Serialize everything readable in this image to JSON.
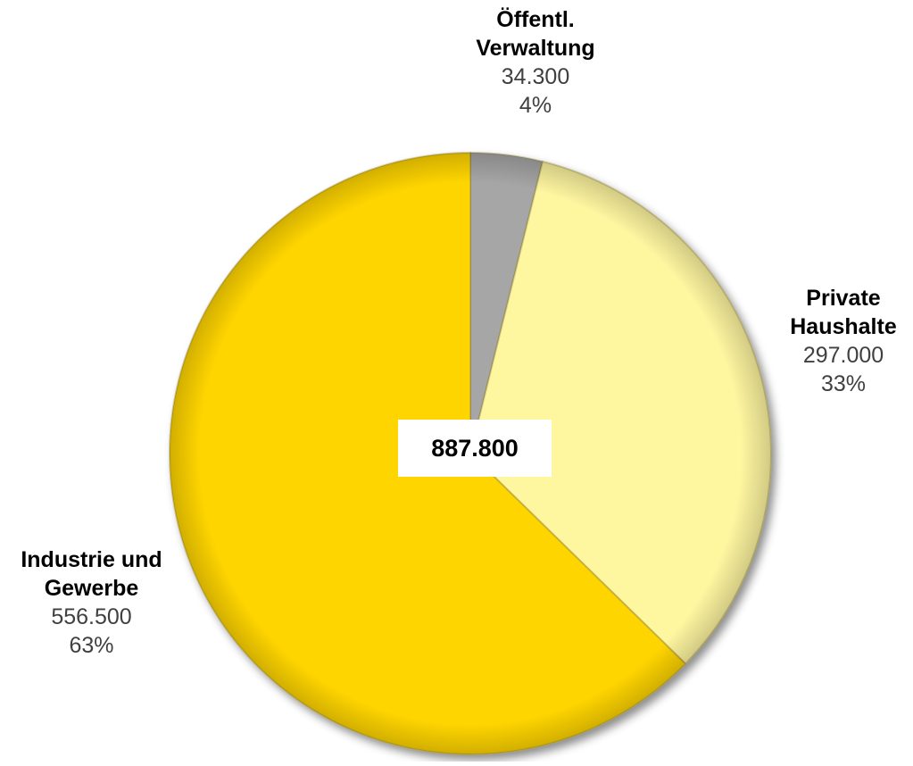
{
  "chart_data": {
    "type": "pie",
    "total_label": "887.800",
    "slices": [
      {
        "name_line1": "Öffentl.",
        "name_line2": "Verwaltung",
        "value": 34300,
        "value_label": "34.300",
        "percent_label": "4%",
        "color": "#A6A6A6"
      },
      {
        "name_line1": "Private",
        "name_line2": "Haushalte",
        "value": 297000,
        "value_label": "297.000",
        "percent_label": "33%",
        "color": "#FFF6A0"
      },
      {
        "name_line1": "Industrie und",
        "name_line2": "Gewerbe",
        "value": 556500,
        "value_label": "556.500",
        "percent_label": "63%",
        "color": "#FFD500"
      }
    ]
  }
}
